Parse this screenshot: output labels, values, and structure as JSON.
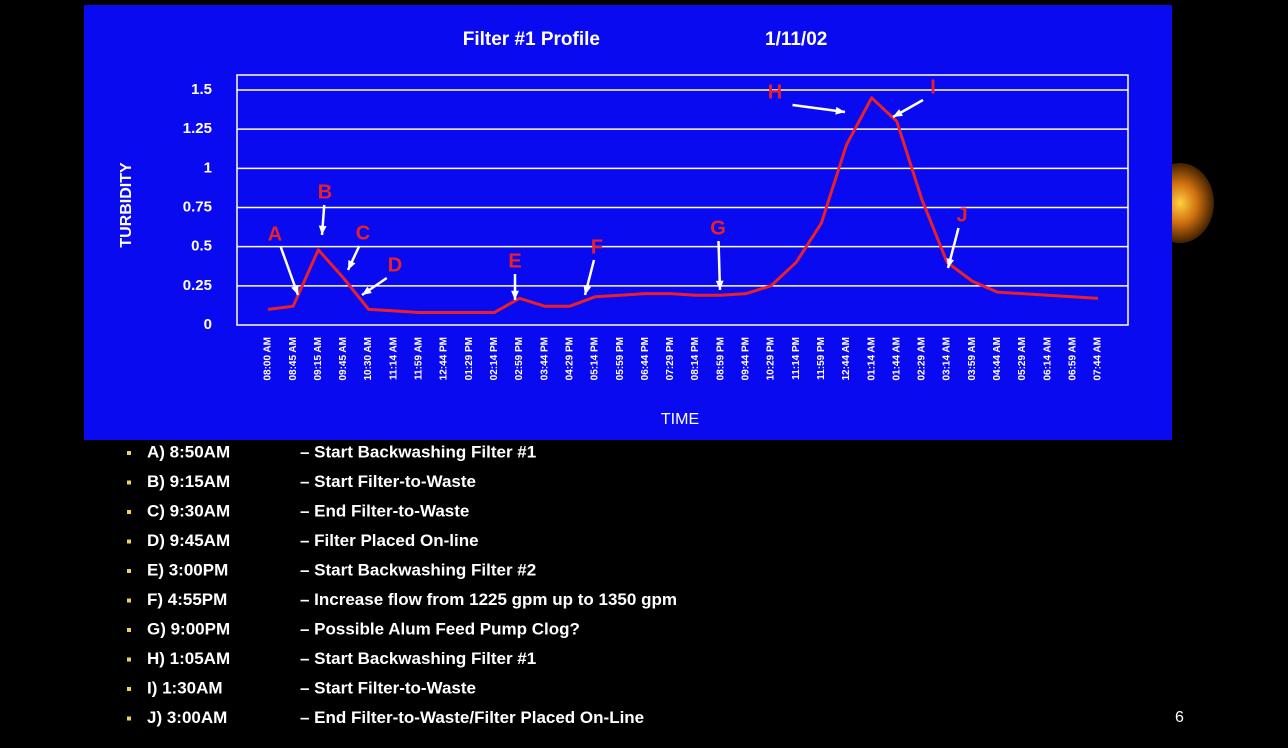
{
  "chart_data": {
    "type": "line",
    "title": "Filter #1 Profile",
    "subtitle": "1/11/02",
    "x_label": "TIME",
    "y_label": "TURBIDITY",
    "categories": [
      "08:00 AM",
      "08:45 AM",
      "09:15 AM",
      "09:45 AM",
      "10:30 AM",
      "11:14 AM",
      "11:59 AM",
      "12:44 PM",
      "01:29 PM",
      "02:14 PM",
      "02:59 PM",
      "03:44 PM",
      "04:29 PM",
      "05:14 PM",
      "05:59 PM",
      "06:44 PM",
      "07:29 PM",
      "08:14 PM",
      "08:59 PM",
      "09:44 PM",
      "10:29 PM",
      "11:14 PM",
      "11:59 PM",
      "12:44 AM",
      "01:14 AM",
      "01:44 AM",
      "02:29 AM",
      "03:14 AM",
      "03:59 AM",
      "04:44 AM",
      "05:29 AM",
      "06:14 AM",
      "06:59 AM",
      "07:44 AM"
    ],
    "series": [
      {
        "color": "#e8202a",
        "values": [
          0.1,
          0.12,
          0.48,
          0.3,
          0.1,
          0.09,
          0.08,
          0.08,
          0.08,
          0.08,
          0.17,
          0.12,
          0.12,
          0.18,
          0.19,
          0.2,
          0.2,
          0.19,
          0.19,
          0.2,
          0.25,
          0.4,
          0.65,
          1.15,
          1.45,
          1.3,
          0.8,
          0.4,
          0.28,
          0.21,
          0.2,
          0.19,
          0.18,
          0.17
        ]
      }
    ],
    "ylim": [
      0,
      1.5
    ],
    "yticks": [
      0,
      0.25,
      0.5,
      0.75,
      1,
      1.25,
      1.5
    ],
    "grid": true,
    "annotations": [
      "A",
      "B",
      "C",
      "D",
      "E",
      "F",
      "G",
      "H",
      "I",
      "J"
    ]
  },
  "notes": [
    {
      "label": "A) 8:50AM",
      "text": "– Start Backwashing Filter #1"
    },
    {
      "label": "B) 9:15AM",
      "text": "– Start Filter-to-Waste"
    },
    {
      "label": "C) 9:30AM",
      "text": "– End Filter-to-Waste"
    },
    {
      "label": "D) 9:45AM",
      "text": "– Filter Placed On-line"
    },
    {
      "label": "E) 3:00PM",
      "text": "– Start Backwashing Filter #2"
    },
    {
      "label": "F) 4:55PM",
      "text": "– Increase flow from 1225 gpm up to 1350 gpm"
    },
    {
      "label": "G) 9:00PM",
      "text": "– Possible Alum Feed Pump Clog?"
    },
    {
      "label": "H) 1:05AM",
      "text": "– Start Backwashing Filter #1"
    },
    {
      "label": "I) 1:30AM",
      "text": "– Start Filter-to-Waste"
    },
    {
      "label": "J) 3:00AM",
      "text": "– End Filter-to-Waste/Filter Placed On-Line"
    }
  ],
  "page_number": "6"
}
